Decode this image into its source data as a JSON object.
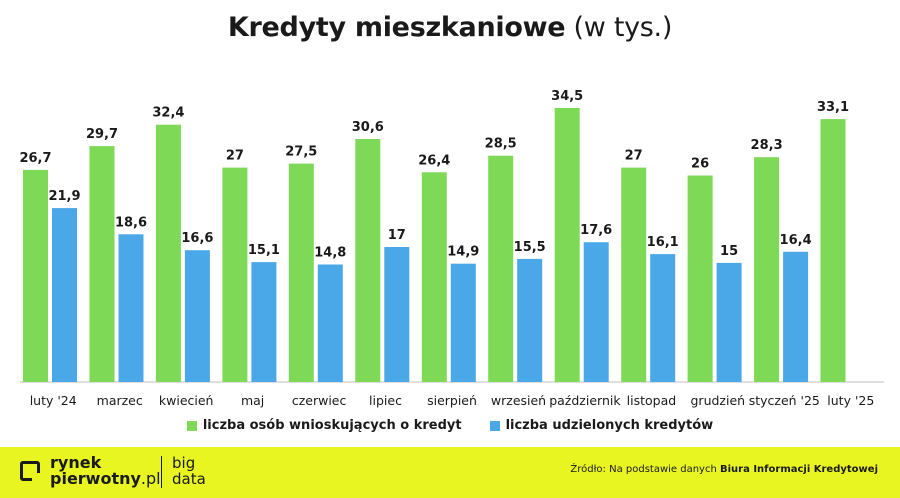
{
  "header": {
    "title_bold": "Kredyty mieszkaniowe",
    "title_light": "(w tys.)"
  },
  "chart_data": {
    "type": "bar",
    "title": "Kredyty mieszkaniowe (w tys.)",
    "categories": [
      "luty '24",
      "marzec",
      "kwiecień",
      "maj",
      "czerwiec",
      "lipiec",
      "sierpień",
      "wrzesień",
      "październik",
      "listopad",
      "grudzień",
      "styczeń '25",
      "luty '25"
    ],
    "series": [
      {
        "name": "liczba osób wnioskujących o kredyt",
        "color": "#7ed957",
        "values": [
          26.7,
          29.7,
          32.4,
          27,
          27.5,
          30.6,
          26.4,
          28.5,
          34.5,
          27,
          26,
          28.3,
          33.1
        ],
        "labels": [
          "26,7",
          "29,7",
          "32,4",
          "27",
          "27,5",
          "30,6",
          "26,4",
          "28,5",
          "34,5",
          "27",
          "26",
          "28,3",
          "33,1"
        ]
      },
      {
        "name": "liczba udzielonych kredytów",
        "color": "#4aa8e8",
        "values": [
          21.9,
          18.6,
          16.6,
          15.1,
          14.8,
          17,
          14.9,
          15.5,
          17.6,
          16.1,
          15,
          16.4,
          null
        ],
        "labels": [
          "21,9",
          "18,6",
          "16,6",
          "15,1",
          "14,8",
          "17",
          "14,9",
          "15,5",
          "17,6",
          "16,1",
          "15",
          "16,4",
          ""
        ]
      }
    ],
    "ylim": [
      0,
      34.5
    ],
    "grid": false,
    "legend": "bottom"
  },
  "legend": {
    "series1": "liczba osób wnioskujących o kredyt",
    "series2": "liczba udzielonych kredytów",
    "color1": "#7ed957",
    "color2": "#4aa8e8"
  },
  "footer": {
    "logo_line1": "rynek",
    "logo_line2_main": "pierwotny",
    "logo_line2_tld": ".pl",
    "bigdata_line1": "big",
    "bigdata_line2": "data",
    "source_prefix": "Źródło: Na podstawie danych",
    "source_bold": "Biura Informacji Kredytowej",
    "bg_color": "#e8f521"
  }
}
